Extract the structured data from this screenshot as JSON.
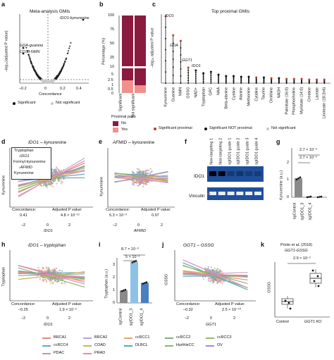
{
  "panel_a": {
    "label": "a",
    "title": "Meta-analysis GMIs",
    "ylabel": "–log₁₀(adjusted P value)",
    "xlabel": "Concordance",
    "xticks": [
      "–0.2",
      "0",
      "0.2",
      "0.4"
    ],
    "yticks": [
      "0",
      "25",
      "50",
      "75",
      "100",
      "125"
    ],
    "annotations": [
      "IDO1-kynurenine",
      "GDA-guanine",
      "CD38-NMN"
    ],
    "legend": [
      "Significant",
      "Not significant"
    ]
  },
  "panel_b": {
    "label": "b",
    "ylabel": "Percentage (%)",
    "yticks": [
      "100",
      "75",
      "50",
      "25",
      "10",
      "5",
      "2.5",
      "1",
      "0.5",
      "0"
    ],
    "categories": [
      "Significant",
      "Not significant"
    ],
    "legend_title": "Proximal pairs",
    "legend": [
      "No",
      "Yes"
    ],
    "colors": {
      "no": "#8b1a3e",
      "yes": "#f2908c"
    }
  },
  "panel_c": {
    "label": "c",
    "title": "Top proximal GMIs",
    "ylabel": "–log₁₀ adjusted P value",
    "yticks": [
      "0",
      "20",
      "40",
      "60",
      "80",
      "100",
      "120"
    ],
    "annotations": [
      "IDO1",
      "GDA",
      "GGT1",
      "IDO1"
    ],
    "categories": [
      "Kynurenine",
      "Guanine",
      "NMN",
      "GSSG",
      "NAD+",
      "Tryptophan",
      "GPC",
      "NAA",
      "Beta-alanine",
      "Cystine",
      "Alanine",
      "Methionine",
      "Cytidine",
      "Taurine",
      "Ornithine",
      "NADH",
      "Palmitate (16:0)",
      "Phosphocholine",
      "Myristate (14:0)",
      "Creatine",
      "Lactate",
      "Linoleate (18:2n6)"
    ],
    "legend": [
      "Significant proximal",
      "Significant NOT proximal",
      "Not significant"
    ]
  },
  "panel_d": {
    "label": "d",
    "title": "IDO1 – kynurenine",
    "pathway": [
      "Tryptophan",
      "↓IDO1",
      "Formyl-kynurenine",
      "↓AFMID",
      "Kynurenine"
    ],
    "ylabel": "Kynurenine",
    "xlabel": "IDO1",
    "xticks": [
      "–2",
      "0",
      "2"
    ],
    "yticks": [
      "2",
      "0",
      "–2"
    ],
    "stats": {
      "concordance_label": "Concordance:",
      "concordance": "0.41",
      "p_label": "Adjusted P value:",
      "p": "4.8 × 10⁻¹³"
    }
  },
  "panel_e": {
    "label": "e",
    "title": "AFMID – kynurenine",
    "ylabel": "Kynurenine",
    "xlabel": "AFMID",
    "xticks": [
      "–2",
      "0",
      "2"
    ],
    "yticks": [
      "2",
      "0",
      "–2"
    ],
    "stats": {
      "concordance_label": "Concordance:",
      "concordance": "5.3 × 10⁻³",
      "p_label": "Adjusted P value:",
      "p": "0.97"
    }
  },
  "panel_f": {
    "label": "f",
    "lanes": [
      "Non-targeting 1",
      "Non-targeting 2",
      "sgIDO1 guide 1",
      "sgIDO1 guide 2",
      "sgIDO1 guide 3",
      "sgIDO1 guide 4"
    ],
    "rows": [
      "IDO1",
      "Vinculin"
    ]
  },
  "panel_g": {
    "label": "g",
    "ylabel": "Kynurenine (a.u.)",
    "yticks": [
      "0",
      "1",
      "2"
    ],
    "categories": [
      "sgControl",
      "sgIDO1_3",
      "sgIDO1_4"
    ],
    "pvalues": [
      "2.7 × 10⁻³",
      "2.7 × 10⁻³"
    ]
  },
  "panel_h": {
    "label": "h",
    "title": "IDO1 – tryptophan",
    "ylabel": "Tryptophan",
    "xlabel": "IDO1",
    "xticks": [
      "–2",
      "0",
      "2"
    ],
    "yticks": [
      "2",
      "0",
      "–2"
    ],
    "stats": {
      "concordance_label": "Concordance:",
      "concordance": "–0.25",
      "p_label": "Adjusted P value:",
      "p": "1.9 × 10⁻⁶"
    }
  },
  "panel_i": {
    "label": "i",
    "ylabel": "Tryptophan (a.u.)",
    "yticks": [
      "0",
      "1",
      "2",
      "3"
    ],
    "categories": [
      "sgControl",
      "sgIDO1_3",
      "sgIDO1_4"
    ],
    "pvalues": [
      "8.7 × 10⁻³",
      "5 × 10⁻³"
    ]
  },
  "panel_j": {
    "label": "j",
    "title": "GGT1 – GSSG",
    "ylabel": "GSSG",
    "xlabel": "GGT1",
    "xticks": [
      "–2",
      "0",
      "2"
    ],
    "yticks": [
      "2",
      "0",
      "–2"
    ],
    "stats": {
      "concordance_label": "Concordance:",
      "concordance": "–0.32",
      "p_label": "Adjusted P value:",
      "p": "2.5 × 10⁻¹⁰"
    }
  },
  "panel_k": {
    "label": "k",
    "title": "Priolo et al. (2018)",
    "subtitle": "GGT1-GSSG",
    "ylabel": "GSSG",
    "categories": [
      "Control",
      "GGT1 KO"
    ],
    "pvalue": "2.9 × 10⁻²"
  },
  "legend": {
    "items": [
      {
        "name": "BRCA1",
        "color": "#e88a7a"
      },
      {
        "name": "BRCA2",
        "color": "#c7a0c9"
      },
      {
        "name": "ccRCC1",
        "color": "#e6a86a"
      },
      {
        "name": "ccRCC2",
        "color": "#7fb07a"
      },
      {
        "name": "ccRCC3",
        "color": "#9ab86a"
      },
      {
        "name": "ccRCC4",
        "color": "#6aa5c9"
      },
      {
        "name": "COAD",
        "color": "#d1b05a"
      },
      {
        "name": "DLBCL",
        "color": "#5aa9a9"
      },
      {
        "name": "HurthleCC",
        "color": "#8db86a"
      },
      {
        "name": "OV",
        "color": "#a58ad1"
      },
      {
        "name": "PDAC",
        "color": "#d18ac9"
      },
      {
        "name": "PRAD",
        "color": "#e88aa5"
      }
    ]
  },
  "chart_data": [
    {
      "type": "bar",
      "panel": "g",
      "categories": [
        "sgControl",
        "sgIDO1_3",
        "sgIDO1_4"
      ],
      "values": [
        1.0,
        0.02,
        0.02
      ],
      "ylim": [
        0,
        2
      ],
      "ylabel": "Kynurenine (a.u.)"
    },
    {
      "type": "bar",
      "panel": "i",
      "categories": [
        "sgControl",
        "sgIDO1_3",
        "sgIDO1_4"
      ],
      "values": [
        1.0,
        3.3,
        1.6
      ],
      "ylim": [
        0,
        3.5
      ],
      "ylabel": "Tryptophan (a.u.)"
    },
    {
      "type": "bar",
      "panel": "b",
      "categories": [
        "Significant",
        "Not significant"
      ],
      "series": [
        {
          "name": "No",
          "values": [
            95,
            99.3
          ]
        },
        {
          "name": "Yes",
          "values": [
            5,
            0.7
          ]
        }
      ],
      "ylabel": "Percentage (%)"
    }
  ]
}
